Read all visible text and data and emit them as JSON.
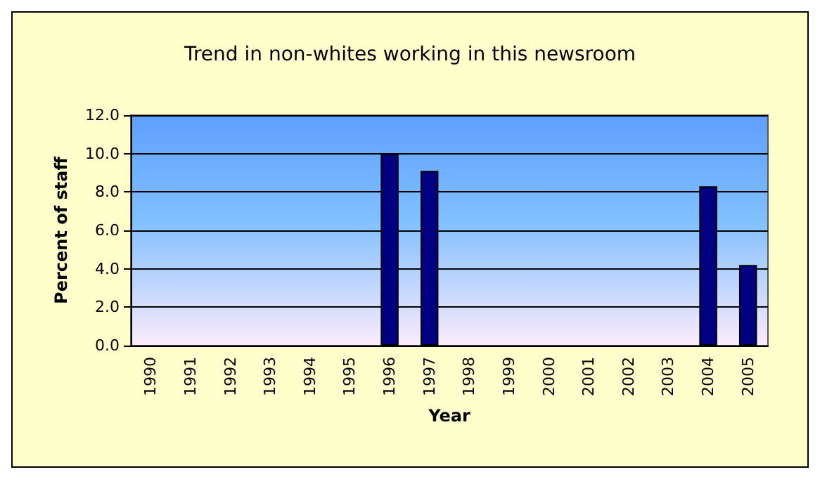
{
  "chart_data": {
    "type": "bar",
    "title": "Trend in non-whites working in this newsroom",
    "xlabel": "Year",
    "ylabel": "Percent of staff",
    "categories": [
      "1990",
      "1991",
      "1992",
      "1993",
      "1994",
      "1995",
      "1996",
      "1997",
      "1998",
      "1999",
      "2000",
      "2001",
      "2002",
      "2003",
      "2004",
      "2005"
    ],
    "values": [
      null,
      null,
      null,
      null,
      null,
      null,
      10.0,
      9.1,
      null,
      null,
      null,
      null,
      null,
      null,
      8.3,
      4.2
    ],
    "color": "#000080",
    "ylim": [
      0,
      12
    ],
    "yticks": [
      {
        "value": 0,
        "label": "0.0"
      },
      {
        "value": 2,
        "label": "2.0"
      },
      {
        "value": 4,
        "label": "4.0"
      },
      {
        "value": 6,
        "label": "6.0"
      },
      {
        "value": 8,
        "label": "8.0"
      },
      {
        "value": 10,
        "label": "10.0"
      },
      {
        "value": 12,
        "label": "12.0"
      }
    ],
    "grid": "y"
  }
}
